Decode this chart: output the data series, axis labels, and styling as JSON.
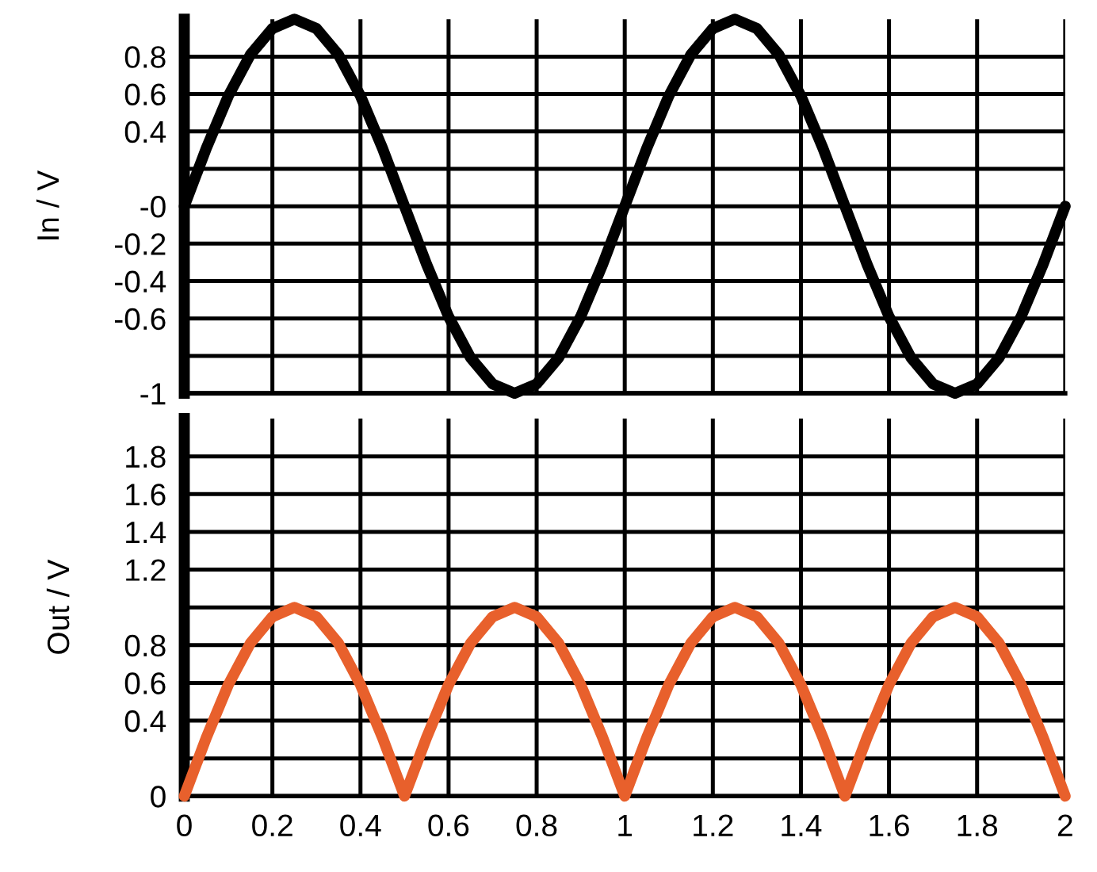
{
  "chart_data": [
    {
      "type": "line",
      "ylabel": "In / V",
      "x": [
        0,
        0.05,
        0.1,
        0.15,
        0.2,
        0.25,
        0.3,
        0.35,
        0.4,
        0.45,
        0.5,
        0.55,
        0.6,
        0.65,
        0.7,
        0.75,
        0.8,
        0.85,
        0.9,
        0.95,
        1,
        1.05,
        1.1,
        1.15,
        1.2,
        1.25,
        1.3,
        1.35,
        1.4,
        1.45,
        1.5,
        1.55,
        1.6,
        1.65,
        1.7,
        1.75,
        1.8,
        1.85,
        1.9,
        1.95,
        2
      ],
      "series": [
        {
          "color": "#000000",
          "values": [
            0,
            0.31,
            0.59,
            0.81,
            0.95,
            1,
            0.95,
            0.81,
            0.59,
            0.31,
            0,
            -0.31,
            -0.59,
            -0.81,
            -0.95,
            -1,
            -0.95,
            -0.81,
            -0.59,
            -0.31,
            0,
            0.31,
            0.59,
            0.81,
            0.95,
            1,
            0.95,
            0.81,
            0.59,
            0.31,
            0,
            -0.31,
            -0.59,
            -0.81,
            -0.95,
            -1,
            -0.95,
            -0.81,
            -0.59,
            -0.31,
            0
          ]
        }
      ],
      "xlim": [
        0,
        2
      ],
      "xticks": [
        0,
        0.2,
        0.4,
        0.6,
        0.8,
        1,
        1.2,
        1.4,
        1.6,
        1.8,
        2
      ],
      "ylim": [
        -1,
        1
      ],
      "yticks": [
        {
          "value": -1,
          "label": "-1"
        },
        {
          "value": -0.8,
          "label": null
        },
        -0.6,
        -0.4,
        -0.2,
        {
          "value": 0,
          "label": "-0"
        },
        {
          "value": 0.2,
          "label": null
        },
        0.4,
        0.6,
        0.8
      ],
      "grid": true,
      "tick_labels": "y"
    },
    {
      "type": "line",
      "ylabel": "Out / V",
      "x": [
        0,
        0.05,
        0.1,
        0.15,
        0.2,
        0.25,
        0.3,
        0.35,
        0.4,
        0.45,
        0.5,
        0.55,
        0.6,
        0.65,
        0.7,
        0.75,
        0.8,
        0.85,
        0.9,
        0.95,
        1,
        1.05,
        1.1,
        1.15,
        1.2,
        1.25,
        1.3,
        1.35,
        1.4,
        1.45,
        1.5,
        1.55,
        1.6,
        1.65,
        1.7,
        1.75,
        1.8,
        1.85,
        1.9,
        1.95,
        2
      ],
      "series": [
        {
          "color": "#e8602c",
          "values": [
            0,
            0.31,
            0.59,
            0.81,
            0.95,
            1,
            0.95,
            0.81,
            0.59,
            0.31,
            0,
            0.31,
            0.59,
            0.81,
            0.95,
            1,
            0.95,
            0.81,
            0.59,
            0.31,
            0,
            0.31,
            0.59,
            0.81,
            0.95,
            1,
            0.95,
            0.81,
            0.59,
            0.31,
            0,
            0.31,
            0.59,
            0.81,
            0.95,
            1,
            0.95,
            0.81,
            0.59,
            0.31,
            0
          ]
        }
      ],
      "xlim": [
        0,
        2
      ],
      "xticks": [
        0,
        0.2,
        0.4,
        0.6,
        0.8,
        1,
        1.2,
        1.4,
        1.6,
        1.8,
        2
      ],
      "ylim": [
        0,
        2
      ],
      "yticks": [
        0,
        {
          "value": 0.2,
          "label": null
        },
        0.4,
        0.6,
        0.8,
        {
          "value": 1,
          "label": null
        },
        1.2,
        1.4,
        1.6,
        1.8
      ],
      "grid": true
    }
  ]
}
